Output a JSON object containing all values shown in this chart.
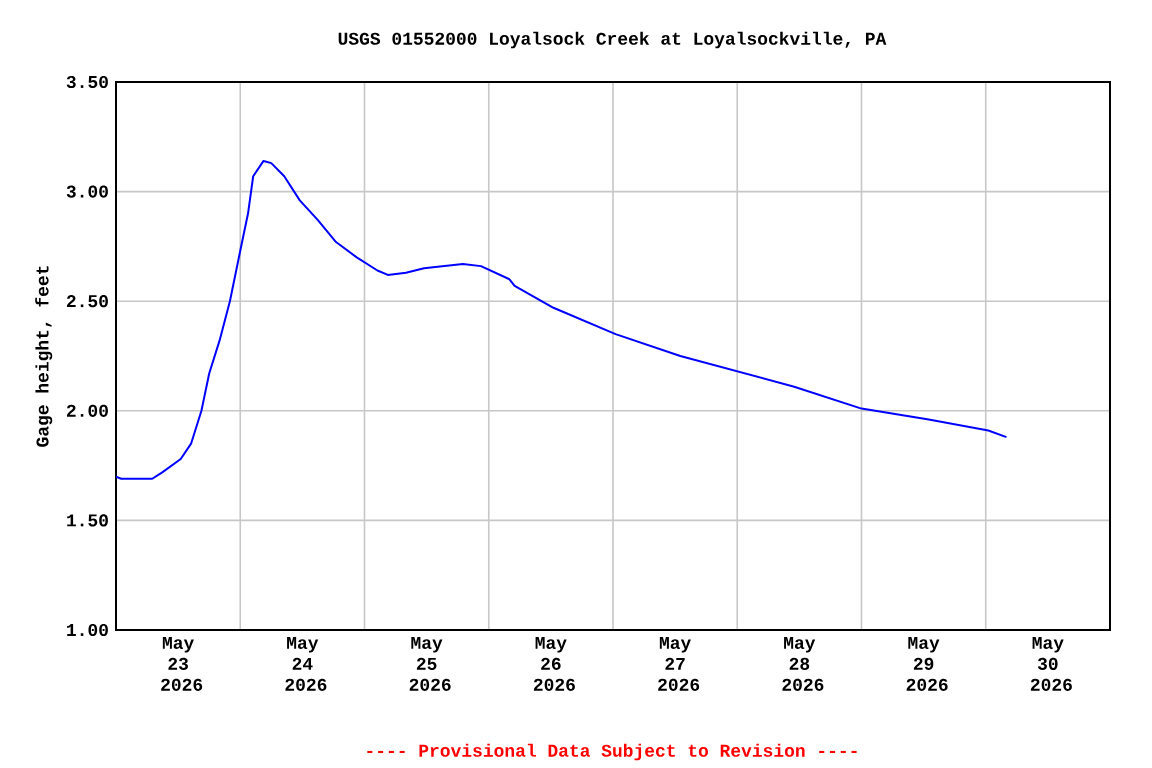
{
  "chart_data": {
    "type": "line",
    "title": "USGS 01552000 Loyalsock Creek at Loyalsockville, PA",
    "ylabel": "Gage height, feet",
    "annotations": [
      "---- Provisional Data Subject to Revision ----"
    ],
    "x": [
      "2026-05-23T00:00",
      "2026-05-23T01:00",
      "2026-05-23T07:00",
      "2026-05-23T09:00",
      "2026-05-23T12:30",
      "2026-05-23T14:30",
      "2026-05-23T16:30",
      "2026-05-23T18:00",
      "2026-05-23T20:00",
      "2026-05-23T22:00",
      "2026-05-24T00:00",
      "2026-05-24T01:30",
      "2026-05-24T02:30",
      "2026-05-24T04:30",
      "2026-05-24T06:00",
      "2026-05-24T08:30",
      "2026-05-24T11:30",
      "2026-05-24T15:00",
      "2026-05-24T18:30",
      "2026-05-24T22:30",
      "2026-05-25T02:30",
      "2026-05-25T04:30",
      "2026-05-25T08:00",
      "2026-05-25T11:30",
      "2026-05-25T19:00",
      "2026-05-25T22:30",
      "2026-05-26T04:00",
      "2026-05-26T05:00",
      "2026-05-26T12:30",
      "2026-05-27T00:30",
      "2026-05-27T13:00",
      "2026-05-28T00:00",
      "2026-05-28T11:00",
      "2026-05-29T00:00",
      "2026-05-29T13:00",
      "2026-05-30T00:30",
      "2026-05-30T04:00"
    ],
    "series": [
      {
        "color": "#0000ff",
        "values": [
          1.7,
          1.69,
          1.69,
          1.72,
          1.78,
          1.85,
          2.0,
          2.17,
          2.32,
          2.5,
          2.73,
          2.9,
          3.07,
          3.14,
          3.13,
          3.07,
          2.96,
          2.87,
          2.77,
          2.7,
          2.64,
          2.62,
          2.63,
          2.65,
          2.67,
          2.66,
          2.6,
          2.57,
          2.47,
          2.35,
          2.25,
          2.18,
          2.11,
          2.01,
          1.96,
          1.91,
          1.88
        ]
      }
    ],
    "xlim": [
      "2026-05-23T00:00",
      "2026-05-31T00:00"
    ],
    "xticks": [
      {
        "value": "2026-05-23T00:00",
        "label": null
      },
      {
        "value": "2026-05-23T12:00",
        "label": "May 23 2026"
      },
      {
        "value": "2026-05-24T00:00",
        "label": null
      },
      {
        "value": "2026-05-24T12:00",
        "label": "May 24 2026"
      },
      {
        "value": "2026-05-25T00:00",
        "label": null
      },
      {
        "value": "2026-05-25T12:00",
        "label": "May 25 2026"
      },
      {
        "value": "2026-05-26T00:00",
        "label": null
      },
      {
        "value": "2026-05-26T12:00",
        "label": "May 26 2026"
      },
      {
        "value": "2026-05-27T00:00",
        "label": null
      },
      {
        "value": "2026-05-27T12:00",
        "label": "May 27 2026"
      },
      {
        "value": "2026-05-28T00:00",
        "label": null
      },
      {
        "value": "2026-05-28T12:00",
        "label": "May 28 2026"
      },
      {
        "value": "2026-05-29T00:00",
        "label": null
      },
      {
        "value": "2026-05-29T12:00",
        "label": "May 29 2026"
      },
      {
        "value": "2026-05-30T00:00",
        "label": null
      },
      {
        "value": "2026-05-30T12:00",
        "label": "May 30 2026"
      },
      {
        "value": "2026-05-31T00:00",
        "label": null
      }
    ],
    "ylim": [
      1.0,
      3.5
    ],
    "yticks": [
      {
        "value": 1.0,
        "label": "1.00"
      },
      {
        "value": 1.5,
        "label": "1.50"
      },
      {
        "value": 2.0,
        "label": "2.00"
      },
      {
        "value": 2.5,
        "label": "2.50"
      },
      {
        "value": 3.0,
        "label": "3.00"
      },
      {
        "value": 3.5,
        "label": "3.50"
      }
    ],
    "grid": true,
    "marker": "none",
    "line_style": "solid"
  }
}
